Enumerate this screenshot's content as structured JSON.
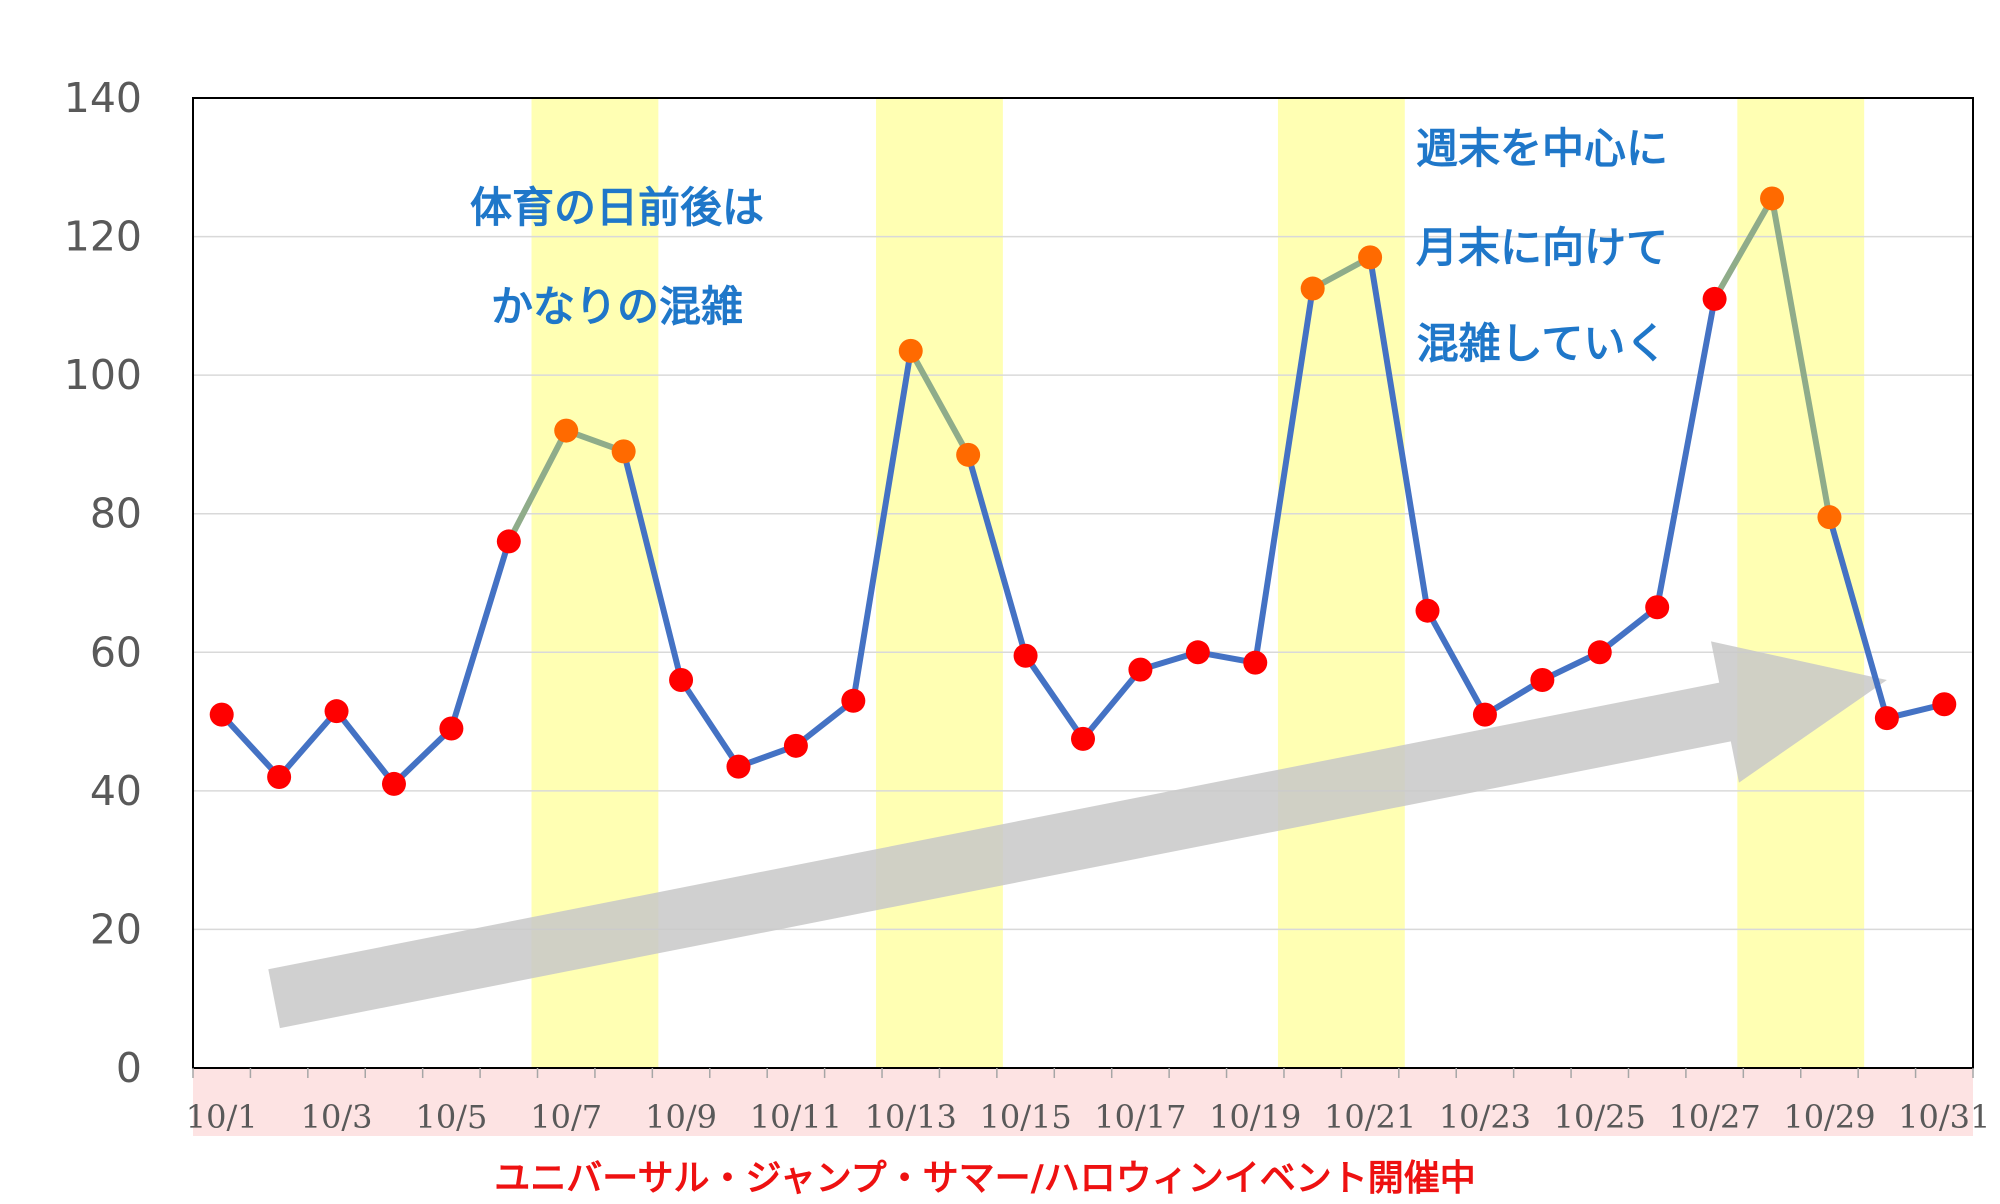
{
  "chart_data": {
    "type": "line",
    "title": "",
    "xlabel": "",
    "ylabel": "",
    "ylim": [
      0,
      140
    ],
    "yticks": [
      0,
      20,
      40,
      60,
      80,
      100,
      120,
      140
    ],
    "grid": true,
    "x": [
      "10/1",
      "10/2",
      "10/3",
      "10/4",
      "10/5",
      "10/6",
      "10/7",
      "10/8",
      "10/9",
      "10/10",
      "10/11",
      "10/12",
      "10/13",
      "10/14",
      "10/15",
      "10/16",
      "10/17",
      "10/18",
      "10/19",
      "10/20",
      "10/21",
      "10/22",
      "10/23",
      "10/24",
      "10/25",
      "10/26",
      "10/27",
      "10/28",
      "10/29",
      "10/30",
      "10/31"
    ],
    "x_tick_labels": [
      "10/1",
      "10/3",
      "10/5",
      "10/7",
      "10/9",
      "10/11",
      "10/13",
      "10/15",
      "10/17",
      "10/19",
      "10/21",
      "10/23",
      "10/25",
      "10/27",
      "10/29",
      "10/31"
    ],
    "series": [
      {
        "values": [
          51,
          42,
          51.5,
          41,
          49,
          76,
          92,
          89,
          56,
          43.5,
          46.5,
          53,
          103.5,
          88.5,
          59.5,
          47.5,
          57.5,
          60,
          58.5,
          112.5,
          117,
          66,
          51,
          56,
          60,
          66.5,
          111,
          125.5,
          79.5,
          50.5,
          52.5
        ],
        "color": "#4472c4",
        "highlight_color": "#8fac8a",
        "marker_color": "#ff0000",
        "highlight_marker_color": "#ff6a00"
      }
    ],
    "highlight_bands": [
      {
        "from": "10/7",
        "to": "10/8",
        "color": "#ffffb3"
      },
      {
        "from": "10/13",
        "to": "10/14",
        "color": "#ffffb3"
      },
      {
        "from": "10/20",
        "to": "10/21",
        "color": "#ffffb3"
      },
      {
        "from": "10/28",
        "to": "10/29",
        "color": "#ffffb3"
      }
    ],
    "trend_arrow": {
      "from": [
        "10/2",
        10
      ],
      "to": [
        "10/30",
        56
      ],
      "color": "#c8c8c8"
    },
    "annotations": [
      {
        "lines": [
          "体育の日前後は",
          "かなりの混雑"
        ]
      },
      {
        "lines": [
          "週末を中心に",
          "月末に向けて",
          "混雑していく"
        ]
      }
    ],
    "event_band": {
      "label": "ユニバーサル・ジャンプ・サマー/ハロウィンイベント開催中",
      "color": "#fde3e3",
      "label_color": "#ee1111"
    }
  }
}
